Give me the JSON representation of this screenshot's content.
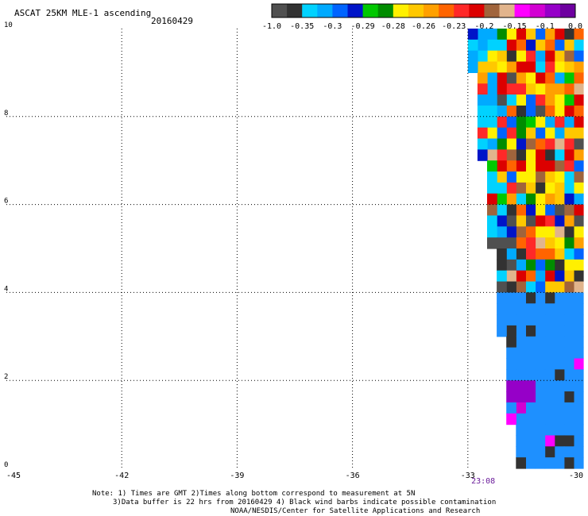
{
  "header": {
    "title": "ASCAT 25KM MLE-1 ascending",
    "date": "20160429"
  },
  "notes": [
    "Note: 1) Times are GMT 2)Times along bottom correspond to measurement at 5N",
    "3)Data buffer is 22 hrs from 20160429 4) Black wind barbs indicate possible contamination",
    "NOAA/NESDIS/Center for Satellite Applications and Research"
  ],
  "chart_data": {
    "type": "heatmap",
    "title": "ASCAT 25KM MLE-1 ascending",
    "date": "20160429",
    "xlim": [
      -45,
      -30
    ],
    "ylim": [
      0,
      10
    ],
    "x_ticks": [
      "-45",
      "-42",
      "-39",
      "-36",
      "-33",
      "-30"
    ],
    "y_ticks": [
      "0",
      "2",
      "4",
      "6",
      "8",
      "10"
    ],
    "grid": true,
    "time_annotation": {
      "label": "23:08",
      "x": -32.6,
      "color": "#6a1b9a"
    },
    "colorbar": {
      "tick_labels": [
        "-1.0",
        "-0.35",
        "-0.3",
        "-0.29",
        "-0.28",
        "-0.26",
        "-0.23",
        "-0.2",
        "-0.15",
        "-0.1",
        "0.0"
      ],
      "bins": [
        {
          "range": [
            -1.0,
            -0.35
          ],
          "colors": [
            "#505050",
            "#323232"
          ]
        },
        {
          "range": [
            -0.35,
            -0.3
          ],
          "colors": [
            "#00d2ff",
            "#00aaff"
          ]
        },
        {
          "range": [
            -0.3,
            -0.29
          ],
          "colors": [
            "#0064ff",
            "#0014c8"
          ]
        },
        {
          "range": [
            -0.29,
            -0.28
          ],
          "colors": [
            "#00c800",
            "#008c00"
          ]
        },
        {
          "range": [
            -0.28,
            -0.26
          ],
          "colors": [
            "#fff000",
            "#ffc800"
          ]
        },
        {
          "range": [
            -0.26,
            -0.23
          ],
          "colors": [
            "#ffa000",
            "#ff6400"
          ]
        },
        {
          "range": [
            -0.23,
            -0.2
          ],
          "colors": [
            "#ff2828",
            "#dc0000"
          ]
        },
        {
          "range": [
            -0.2,
            -0.15
          ],
          "colors": [
            "#a0643c",
            "#e1b48c"
          ]
        },
        {
          "range": [
            -0.15,
            -0.1
          ],
          "colors": [
            "#ff00ff",
            "#d200d2"
          ]
        },
        {
          "range": [
            -0.1,
            0.0
          ],
          "colors": [
            "#9600c8",
            "#6e00a0"
          ]
        }
      ]
    },
    "swath": {
      "cell_deg": 0.25,
      "description_values": "MLE values per 0.25 deg cell inside the satellite swath; swath western edge by latitude",
      "west_edge": [
        [
          10,
          -33.1
        ],
        [
          8.0,
          -32.9
        ],
        [
          6.0,
          -32.6
        ],
        [
          4.0,
          -32.4
        ],
        [
          2.0,
          -32.1
        ],
        [
          0,
          -31.9
        ]
      ],
      "east_edge": -30.0,
      "zones": [
        {
          "lat_range": [
            4.0,
            10.0
          ],
          "value_range": [
            -0.35,
            0.0
          ],
          "pattern": "mixed"
        },
        {
          "lat_range": [
            0.0,
            4.0
          ],
          "value_range": [
            -0.35,
            -0.3
          ],
          "pattern": "mostly -0.35 to -0.3 with scattered -1.0 to -0.35 and -0.15 to 0.0"
        }
      ]
    }
  }
}
